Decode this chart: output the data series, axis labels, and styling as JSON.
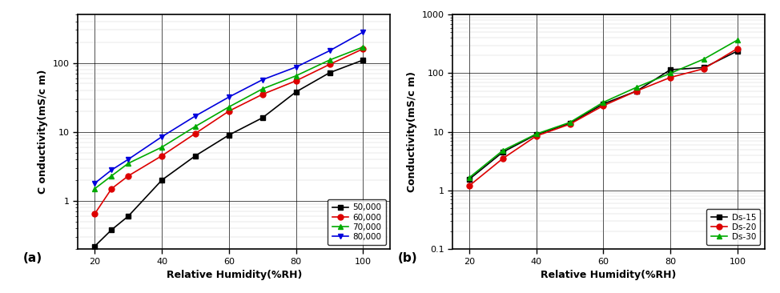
{
  "panel_a": {
    "xlabel": "Relative Humidity(%RH)",
    "ylabel": "C onductivity(mS/c m)",
    "label": "(a)",
    "ylim": [
      0.2,
      500
    ],
    "xlim": [
      15,
      108
    ],
    "xticks": [
      20,
      40,
      60,
      80,
      100
    ],
    "yticks_major": [
      1,
      10,
      100
    ],
    "ytick_labels": [
      "1",
      "10",
      "100"
    ],
    "series": [
      {
        "label": "50,000",
        "color": "#000000",
        "marker": "s",
        "x": [
          20,
          25,
          30,
          40,
          50,
          60,
          70,
          80,
          90,
          100
        ],
        "y": [
          0.22,
          0.38,
          0.6,
          2.0,
          4.5,
          9.0,
          16,
          38,
          72,
          110
        ]
      },
      {
        "label": "60,000",
        "color": "#dd0000",
        "marker": "o",
        "x": [
          20,
          25,
          30,
          40,
          50,
          60,
          70,
          80,
          90,
          100
        ],
        "y": [
          0.65,
          1.5,
          2.3,
          4.5,
          9.5,
          20,
          35,
          55,
          95,
          160
        ]
      },
      {
        "label": "70,000",
        "color": "#00aa00",
        "marker": "^",
        "x": [
          20,
          25,
          30,
          40,
          50,
          60,
          70,
          80,
          90,
          100
        ],
        "y": [
          1.5,
          2.3,
          3.5,
          6.0,
          12,
          23,
          42,
          65,
          110,
          170
        ]
      },
      {
        "label": "80,000",
        "color": "#0000dd",
        "marker": "v",
        "x": [
          20,
          25,
          30,
          40,
          50,
          60,
          70,
          80,
          90,
          100
        ],
        "y": [
          1.8,
          2.8,
          4.0,
          8.5,
          17,
          32,
          57,
          87,
          150,
          280
        ]
      }
    ]
  },
  "panel_b": {
    "xlabel": "Relative Humidity(%RH)",
    "ylabel": "Conductivity(mS/c m)",
    "label": "(b)",
    "ylim": [
      0.1,
      1000
    ],
    "xlim": [
      15,
      108
    ],
    "xticks": [
      20,
      40,
      60,
      80,
      100
    ],
    "yticks_major": [
      0.1,
      1,
      10,
      100,
      1000
    ],
    "ytick_labels": [
      "0.1",
      "1",
      "10",
      "100",
      "1000"
    ],
    "series": [
      {
        "label": "Ds-15",
        "color": "#000000",
        "marker": "s",
        "x": [
          20,
          30,
          40,
          50,
          60,
          70,
          80,
          90,
          100
        ],
        "y": [
          1.55,
          4.5,
          9.0,
          14.0,
          30,
          50,
          115,
          125,
          240
        ]
      },
      {
        "label": "Ds-20",
        "color": "#dd0000",
        "marker": "o",
        "x": [
          20,
          30,
          40,
          50,
          60,
          70,
          80,
          90,
          100
        ],
        "y": [
          1.2,
          3.5,
          8.5,
          13.5,
          28,
          50,
          85,
          120,
          265
        ]
      },
      {
        "label": "Ds-30",
        "color": "#00aa00",
        "marker": "^",
        "x": [
          20,
          30,
          40,
          50,
          60,
          70,
          80,
          90,
          100
        ],
        "y": [
          1.65,
          4.8,
          9.2,
          14.5,
          32,
          58,
          100,
          175,
          370
        ]
      }
    ]
  },
  "figure_width": 9.74,
  "figure_height": 3.66,
  "dpi": 100
}
